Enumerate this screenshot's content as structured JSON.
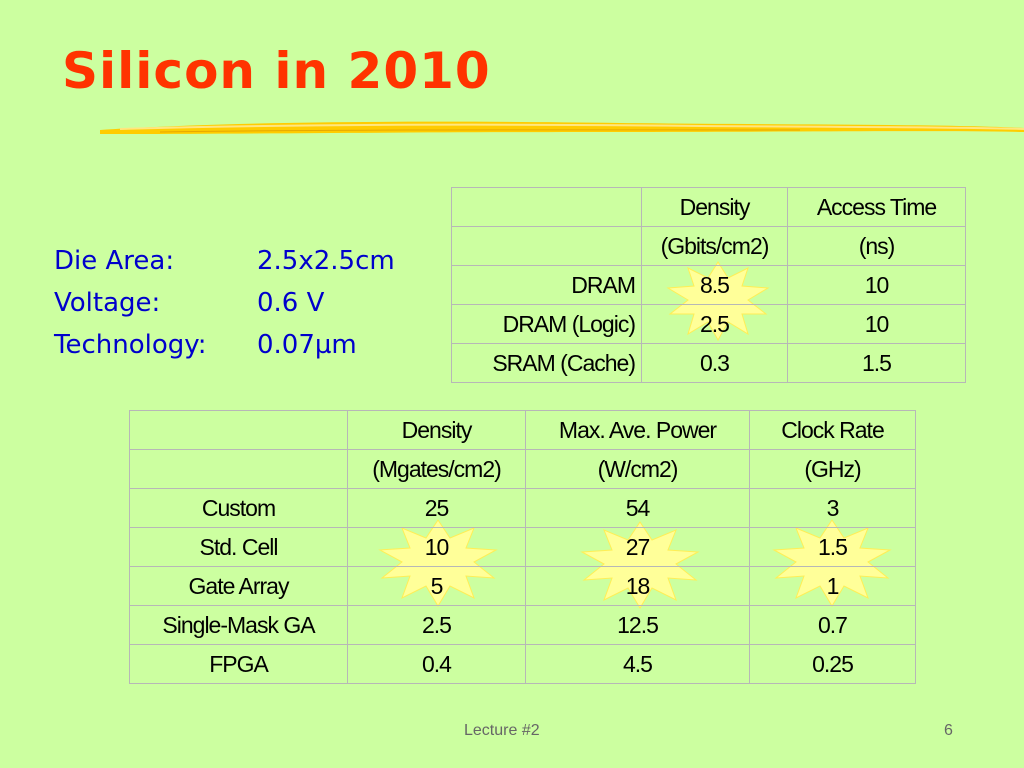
{
  "title": "Silicon in 2010",
  "specs": [
    {
      "label": "Die Area:",
      "value": "2.5x2.5cm"
    },
    {
      "label": "Voltage:",
      "value": "0.6 V"
    },
    {
      "label": "Technology:",
      "value": "0.07µm"
    }
  ],
  "memory_table": {
    "header1": [
      "",
      "Density",
      "Access Time"
    ],
    "header2": [
      "",
      "(Gbits/cm2)",
      "(ns)"
    ],
    "rows": [
      [
        "DRAM",
        "8.5",
        "10"
      ],
      [
        "DRAM (Logic)",
        "2.5",
        "10"
      ],
      [
        "SRAM (Cache)",
        "0.3",
        "1.5"
      ]
    ]
  },
  "logic_table": {
    "header1": [
      "",
      "Density",
      "Max. Ave. Power",
      "Clock Rate"
    ],
    "header2": [
      "",
      "(Mgates/cm2)",
      "(W/cm2)",
      "(GHz)"
    ],
    "rows": [
      [
        "Custom",
        "25",
        "54",
        "3"
      ],
      [
        "Std. Cell",
        "10",
        "27",
        "1.5"
      ],
      [
        "Gate Array",
        "5",
        "18",
        "1"
      ],
      [
        "Single-Mask GA",
        "2.5",
        "12.5",
        "0.7"
      ],
      [
        "FPGA",
        "0.4",
        "4.5",
        "0.25"
      ]
    ]
  },
  "footer": {
    "center": "Lecture #2",
    "page": "6"
  },
  "colors": {
    "background": "#ccffa0",
    "title": "#ff3300",
    "specs": "#0000cc",
    "burst": "#ffff99",
    "underline": "#ffcc00"
  }
}
